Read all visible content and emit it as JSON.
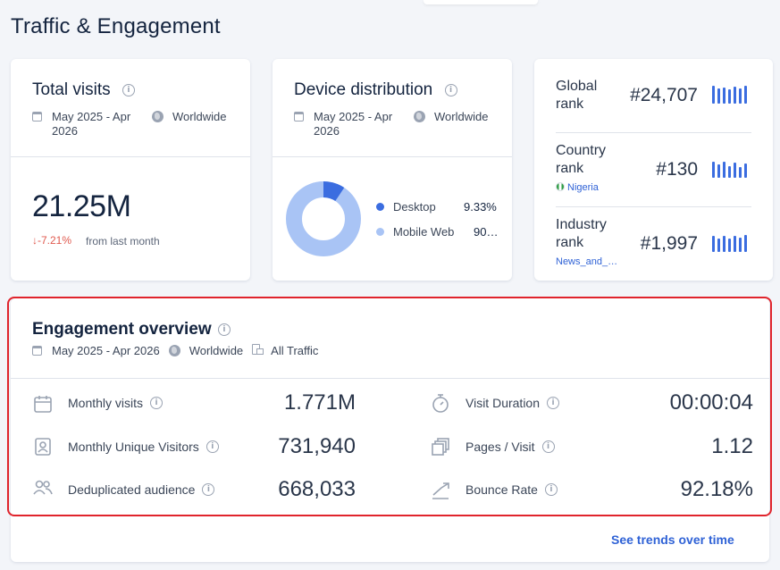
{
  "page": {
    "title": "Traffic & Engagement"
  },
  "total_visits": {
    "title": "Total visits",
    "date_range": "May 2025 - Apr 2026",
    "region": "Worldwide",
    "value": "21.25M",
    "change": "↓-7.21%",
    "change_note": "from last month"
  },
  "device_distribution": {
    "title": "Device distribution",
    "date_range": "May 2025 - Apr 2026",
    "region": "Worldwide",
    "items": [
      {
        "label": "Desktop",
        "value": "9.33%",
        "share": 0.0933,
        "color": "#3b6de0"
      },
      {
        "label": "Mobile Web",
        "value": "90…",
        "share": 0.9067,
        "color": "#a9c4f5"
      }
    ]
  },
  "ranks": [
    {
      "label": "Global rank",
      "value": "#24,707",
      "sub": ""
    },
    {
      "label": "Country rank",
      "value": "#130",
      "sub": "Nigeria"
    },
    {
      "label": "Industry rank",
      "value": "#1,997",
      "sub": "News_and_…"
    }
  ],
  "engagement": {
    "title": "Engagement overview",
    "date_range": "May 2025 - Apr 2026",
    "region": "Worldwide",
    "traffic": "All Traffic",
    "metrics_left": [
      {
        "label": "Monthly visits",
        "value": "1.771M",
        "icon": "calendar-icon"
      },
      {
        "label": "Monthly Unique Visitors",
        "value": "731,940",
        "icon": "id-card-icon"
      },
      {
        "label": "Deduplicated audience",
        "value": "668,033",
        "icon": "users-icon"
      }
    ],
    "metrics_right": [
      {
        "label": "Visit Duration",
        "value": "00:00:04",
        "icon": "stopwatch-icon"
      },
      {
        "label": "Pages / Visit",
        "value": "1.12",
        "icon": "pages-icon"
      },
      {
        "label": "Bounce Rate",
        "value": "92.18%",
        "icon": "bounce-arrow-icon"
      }
    ],
    "see_trends": "See trends over time"
  },
  "colors": {
    "accent": "#3b6de0",
    "negative": "#e05a4f",
    "highlight": "#e0242c"
  }
}
